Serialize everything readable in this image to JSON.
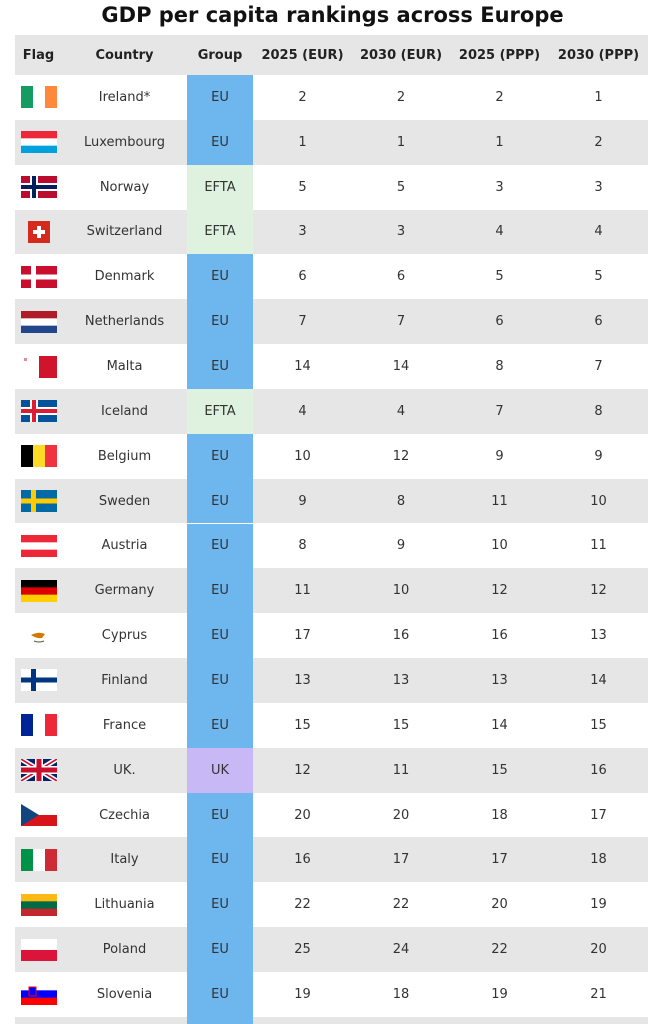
{
  "title": "GDP per capita rankings across Europe",
  "table": {
    "columns": [
      "Flag",
      "Country",
      "Group",
      "2025 (EUR)",
      "2030 (EUR)",
      "2025 (PPP)",
      "2030 (PPP)"
    ],
    "group_colors": {
      "EU": "#6db6ee",
      "EFTA": "#def2df",
      "UK": "#c8b9f6"
    },
    "rows": [
      [
        "Ireland*",
        "EU",
        2,
        2,
        2,
        1
      ],
      [
        "Luxembourg",
        "EU",
        1,
        1,
        1,
        2
      ],
      [
        "Norway",
        "EFTA",
        5,
        5,
        3,
        3
      ],
      [
        "Switzerland",
        "EFTA",
        3,
        3,
        4,
        4
      ],
      [
        "Denmark",
        "EU",
        6,
        6,
        5,
        5
      ],
      [
        "Netherlands",
        "EU",
        7,
        7,
        6,
        6
      ],
      [
        "Malta",
        "EU",
        14,
        14,
        8,
        7
      ],
      [
        "Iceland",
        "EFTA",
        4,
        4,
        7,
        8
      ],
      [
        "Belgium",
        "EU",
        10,
        12,
        9,
        9
      ],
      [
        "Sweden",
        "EU",
        9,
        8,
        11,
        10
      ],
      [
        "Austria",
        "EU",
        8,
        9,
        10,
        11
      ],
      [
        "Germany",
        "EU",
        11,
        10,
        12,
        12
      ],
      [
        "Cyprus",
        "EU",
        17,
        16,
        16,
        13
      ],
      [
        "Finland",
        "EU",
        13,
        13,
        13,
        14
      ],
      [
        "France",
        "EU",
        15,
        15,
        14,
        15
      ],
      [
        "UK.",
        "UK",
        12,
        11,
        15,
        16
      ],
      [
        "Czechia",
        "EU",
        20,
        20,
        18,
        17
      ],
      [
        "Italy",
        "EU",
        16,
        17,
        17,
        18
      ],
      [
        "Lithuania",
        "EU",
        22,
        22,
        20,
        19
      ],
      [
        "Poland",
        "EU",
        25,
        24,
        22,
        20
      ],
      [
        "Slovenia",
        "EU",
        19,
        18,
        19,
        21
      ]
    ]
  }
}
